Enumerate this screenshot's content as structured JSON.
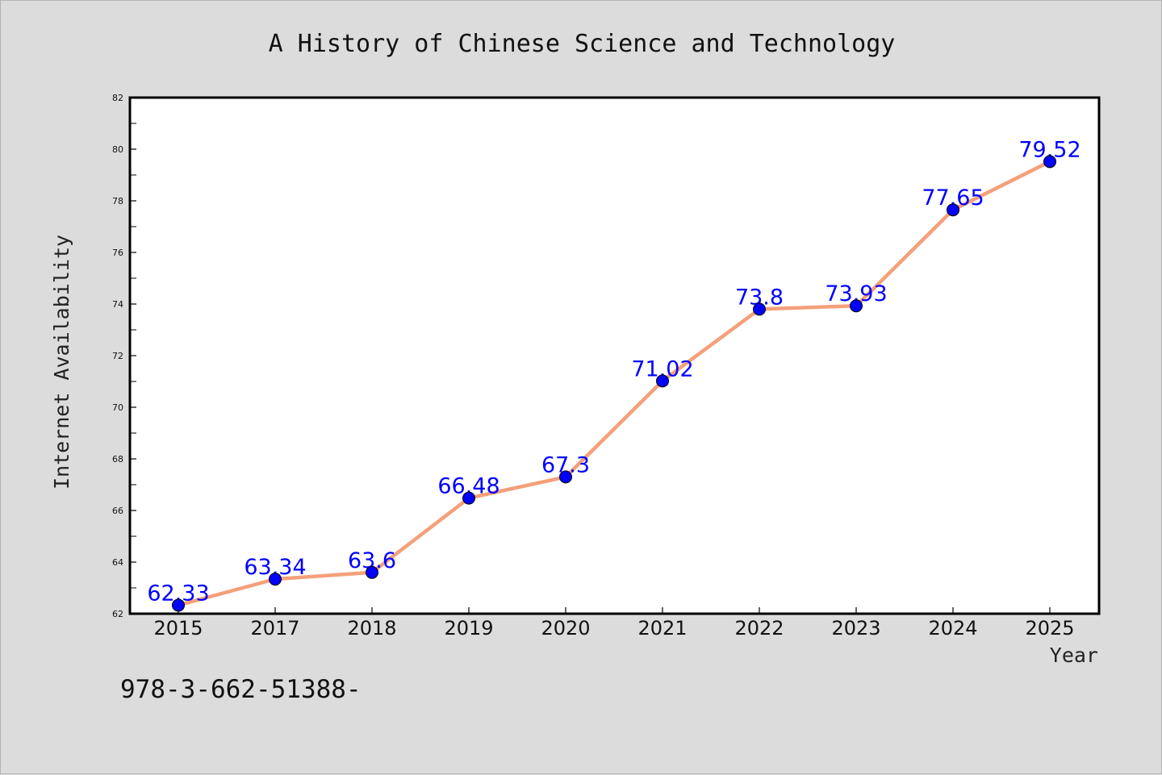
{
  "chart_data": {
    "type": "line",
    "title": "A History of Chinese Science and Technology",
    "xlabel": "Year",
    "ylabel": "Internet Availability",
    "categories": [
      "2015",
      "2017",
      "2018",
      "2019",
      "2020",
      "2021",
      "2022",
      "2023",
      "2024",
      "2025"
    ],
    "series": [
      {
        "values": [
          62.33,
          63.34,
          63.6,
          66.48,
          67.3,
          71.02,
          73.8,
          73.93,
          77.65,
          79.52
        ],
        "labels": [
          "62.33",
          "63.34",
          "63.6",
          "66.48",
          "67.3",
          "71.02",
          "73.8",
          "73.93",
          "77.65",
          "79.52"
        ],
        "line_color": "#f4a07a",
        "marker_color": "#0000ff",
        "label_color": "#0000ff"
      }
    ],
    "ylim": [
      62,
      82
    ],
    "yticks": [
      "62",
      "64",
      "66",
      "68",
      "70",
      "72",
      "74",
      "76",
      "78",
      "80",
      "82"
    ],
    "grid": false,
    "legend": "none"
  },
  "footnote": "978-3-662-51388-"
}
